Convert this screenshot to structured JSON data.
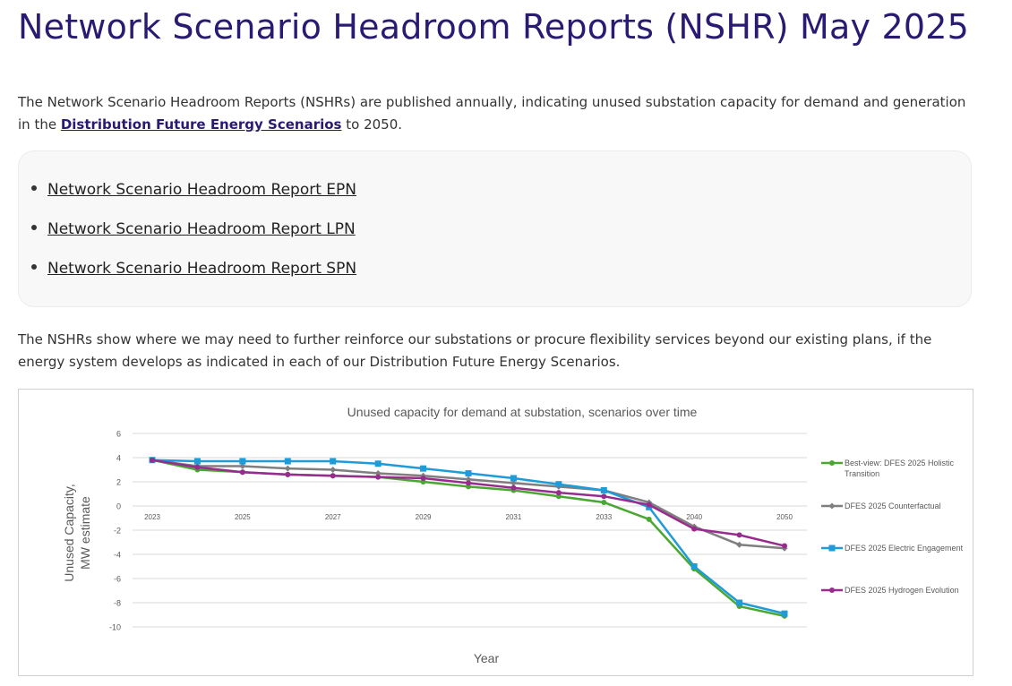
{
  "page": {
    "title": "Network Scenario Headroom Reports (NSHR) May 2025",
    "intro_before": "The Network Scenario Headroom Reports (NSHRs) are published annually, indicating unused substation capacity for demand and generation in the ",
    "intro_link": "Distribution Future Energy Scenarios",
    "intro_after": " to 2050.",
    "reports": [
      {
        "label": "Network Scenario Headroom Report EPN"
      },
      {
        "label": "Network Scenario Headroom Report LPN"
      },
      {
        "label": "Network Scenario Headroom Report SPN"
      }
    ],
    "body2": "The NSHRs show where we may need to further reinforce our substations or procure flexibility services beyond our existing plans, if the energy system develops as indicated in each of our Distribution Future Energy Scenarios."
  },
  "chart_data": {
    "type": "line",
    "title": "Unused capacity for demand at substation, scenarios over time",
    "xlabel": "Year",
    "ylabel": "Unused Capacity, MW estimate",
    "ylim": [
      -10,
      6
    ],
    "yticks": [
      6,
      4,
      2,
      0,
      -2,
      -4,
      -6,
      -8,
      -10
    ],
    "x": [
      "2023",
      "2024",
      "2025",
      "2026",
      "2027",
      "2028",
      "2029",
      "2030",
      "2031",
      "2032",
      "2033",
      "2034",
      "2040",
      "2045",
      "2050"
    ],
    "xtick_labels": [
      "2023",
      "",
      "2025",
      "",
      "2027",
      "",
      "2029",
      "",
      "2031",
      "",
      "2033",
      "",
      "2040",
      "",
      "2050"
    ],
    "legend_position": "right",
    "series": [
      {
        "name": "Best-view:  DFES 2025 Holistic Transition",
        "color": "#4aa832",
        "marker": "circle",
        "values": [
          3.8,
          3.0,
          2.8,
          2.6,
          2.5,
          2.4,
          2.0,
          1.6,
          1.3,
          0.8,
          0.3,
          -1.1,
          -5.2,
          -8.3,
          -9.1
        ]
      },
      {
        "name": "DFES 2025 Counterfactual",
        "color": "#7f7f7f",
        "marker": "diamond",
        "values": [
          3.8,
          3.3,
          3.3,
          3.1,
          3.0,
          2.7,
          2.5,
          2.2,
          1.9,
          1.6,
          1.3,
          0.3,
          -1.7,
          -3.2,
          -3.5
        ]
      },
      {
        "name": "DFES 2025 Electric Engagement",
        "color": "#1f9bd7",
        "marker": "square",
        "values": [
          3.8,
          3.7,
          3.7,
          3.7,
          3.7,
          3.5,
          3.1,
          2.7,
          2.3,
          1.8,
          1.3,
          -0.1,
          -5.0,
          -8.0,
          -8.9
        ]
      },
      {
        "name": "DFES 2025 Hydrogen Evolution",
        "color": "#982c8e",
        "marker": "circle",
        "values": [
          3.8,
          3.2,
          2.8,
          2.6,
          2.5,
          2.4,
          2.3,
          1.9,
          1.5,
          1.1,
          0.8,
          0.1,
          -1.9,
          -2.4,
          -3.3
        ]
      }
    ]
  }
}
